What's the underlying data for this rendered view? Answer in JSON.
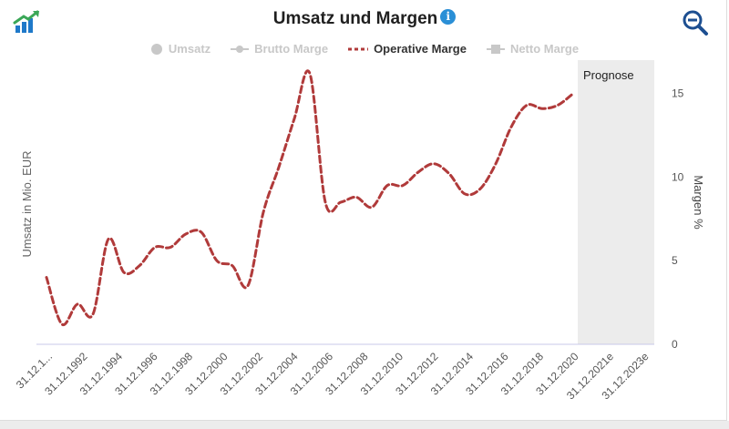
{
  "header": {
    "title": "Umsatz und Margen",
    "info_icon": "info-icon",
    "zoom_icon": "zoom-out-icon",
    "logo_icon": "growth-chart-icon"
  },
  "legend": [
    {
      "label": "Umsatz",
      "marker": "circle",
      "active": false
    },
    {
      "label": "Brutto Marge",
      "marker": "line-circle",
      "active": false
    },
    {
      "label": "Operative Marge",
      "marker": "dashed-line",
      "active": true
    },
    {
      "label": "Netto Marge",
      "marker": "line-square",
      "active": false
    }
  ],
  "colors": {
    "operative": "#b03a3a",
    "inactive": "#c8c8c8",
    "forecast_band": "#ececec",
    "axis_line": "#c8c8e8",
    "logo_green": "#3aa757",
    "logo_blue": "#1f79c9",
    "zoom": "#1d4f91"
  },
  "chart_data": {
    "type": "line",
    "title": "Umsatz und Margen",
    "ylabel_left": "Umsatz in Mio. EUR",
    "ylabel_right": "Margen %",
    "y_right_ticks": [
      0,
      5,
      10,
      15
    ],
    "ylim": [
      0,
      17
    ],
    "forecast_label": "Prognose",
    "x_tick_labels": [
      "31.12.1...",
      "31.12.1992",
      "31.12.1994",
      "31.12.1996",
      "31.12.1998",
      "31.12.2000",
      "31.12.2002",
      "31.12.2004",
      "31.12.2006",
      "31.12.2008",
      "31.12.2010",
      "31.12.2012",
      "31.12.2014",
      "31.12.2016",
      "31.12.2018",
      "31.12.2020",
      "31.12.2021e",
      "31.12.2023e"
    ],
    "series": [
      {
        "name": "Operative Marge",
        "x": [
          1990,
          1991,
          1992,
          1993,
          1994,
          1995,
          1996,
          1997,
          1998,
          1999,
          2000,
          2001,
          2002,
          2003,
          2004,
          2005,
          2006,
          2007,
          2008,
          2009,
          2010,
          2011,
          2012,
          2013,
          2014,
          2015,
          2016,
          2017,
          2018,
          2019,
          2020,
          2021,
          2022,
          2023,
          2024
        ],
        "values": [
          4.0,
          1.2,
          2.4,
          1.8,
          6.3,
          4.3,
          4.7,
          5.8,
          5.8,
          6.6,
          6.7,
          5.0,
          4.7,
          3.5,
          7.9,
          10.6,
          13.5,
          16.2,
          8.5,
          8.5,
          8.8,
          8.2,
          9.5,
          9.5,
          10.3,
          10.8,
          10.2,
          9.0,
          9.3,
          10.8,
          13.0,
          14.3,
          14.1,
          14.3,
          15.0
        ]
      }
    ]
  }
}
